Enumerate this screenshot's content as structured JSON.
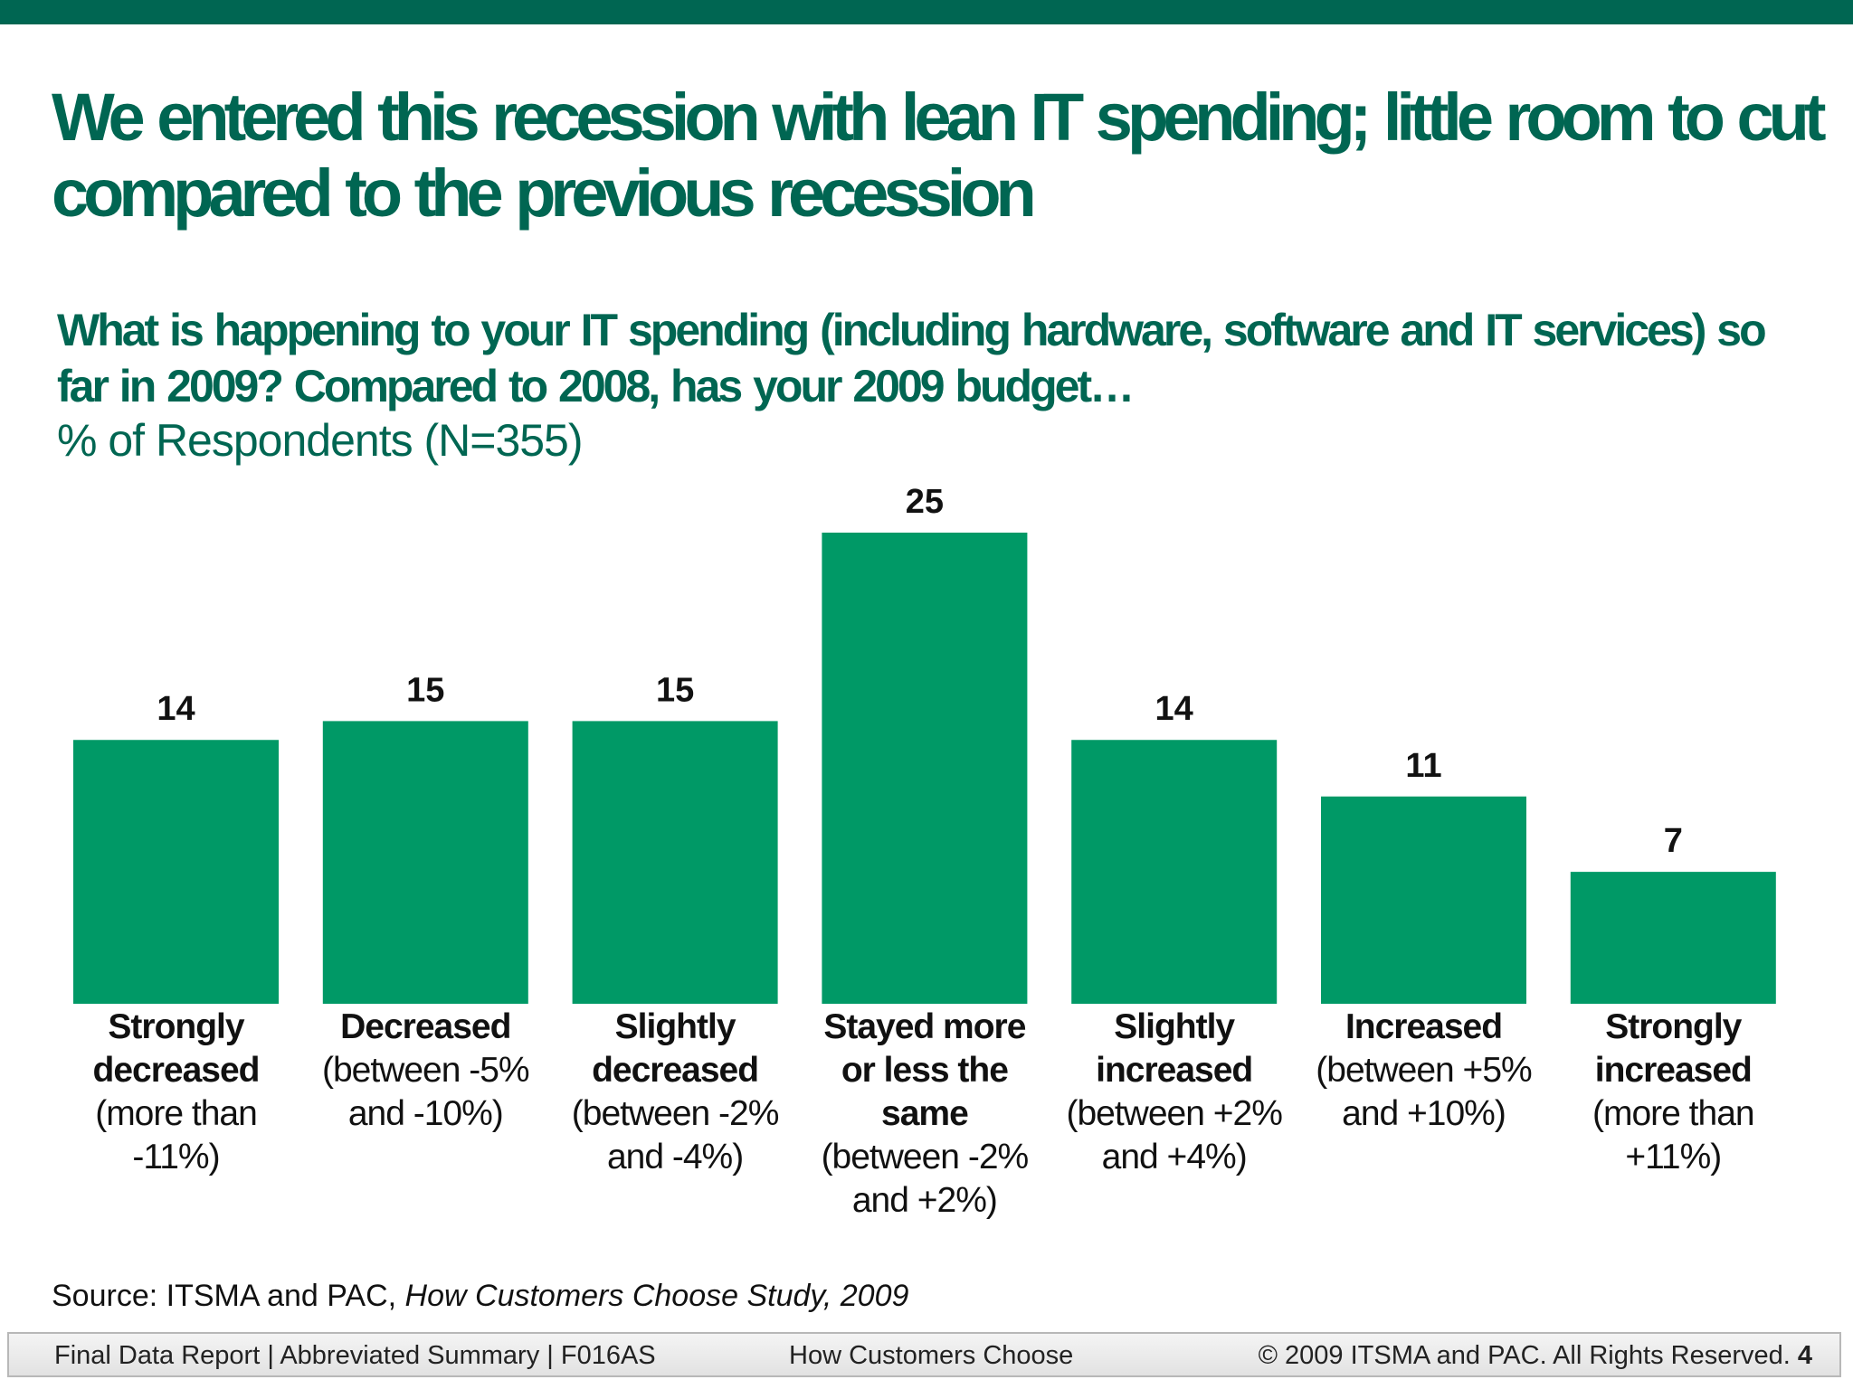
{
  "title": "We entered this recession with lean IT spending; little room to cut compared to the previous recession",
  "question": "What is happening to your IT spending (including hardware, software and IT services) so far in 2009? Compared to 2008, has your 2009 budget…",
  "unit_label": "% of Respondents (N=355)",
  "colors": {
    "brand": "#006652",
    "bar": "#009966"
  },
  "chart_data": {
    "type": "bar",
    "title": "",
    "xlabel": "",
    "ylabel": "% of Respondents (N=355)",
    "ylim": [
      0,
      25
    ],
    "grid": false,
    "categories": [
      "Strongly decreased (more than -11%)",
      "Decreased (between -5% and -10%)",
      "Slightly decreased (between -2% and -4%)",
      "Stayed more or less the same (between -2% and +2%)",
      "Slightly increased (between +2% and +4%)",
      "Increased (between +5% and +10%)",
      "Strongly increased (more than +11%)"
    ],
    "category_lines": [
      {
        "bold": [
          "Strongly",
          "decreased"
        ],
        "regular": [
          "(more than",
          "-11%)"
        ]
      },
      {
        "bold": [
          "Decreased"
        ],
        "regular": [
          "(between -5%",
          "and -10%)"
        ]
      },
      {
        "bold": [
          "Slightly",
          "decreased"
        ],
        "regular": [
          "(between -2%",
          "and -4%)"
        ]
      },
      {
        "bold": [
          "Stayed more",
          "or less the",
          "same"
        ],
        "regular": [
          "(between -2%",
          "and +2%)"
        ]
      },
      {
        "bold": [
          "Slightly",
          "increased"
        ],
        "regular": [
          "(between +2%",
          "and +4%)"
        ]
      },
      {
        "bold": [
          "Increased"
        ],
        "regular": [
          "(between +5%",
          "and +10%)"
        ]
      },
      {
        "bold": [
          "Strongly",
          "increased"
        ],
        "regular": [
          "(more than",
          "+11%)"
        ]
      }
    ],
    "values": [
      14,
      15,
      15,
      25,
      14,
      11,
      7
    ],
    "data_labels": [
      "14",
      "15",
      "15",
      "25",
      "14",
      "11",
      "7"
    ]
  },
  "source": {
    "prefix": "Source: ITSMA and PAC, ",
    "italic": "How Customers Choose Study, 2009"
  },
  "footer": {
    "left": "Final Data Report | Abbreviated Summary | F016AS",
    "center": "How Customers Choose",
    "right": "© 2009 ITSMA and PAC. All Rights Reserved.",
    "page": "4"
  }
}
